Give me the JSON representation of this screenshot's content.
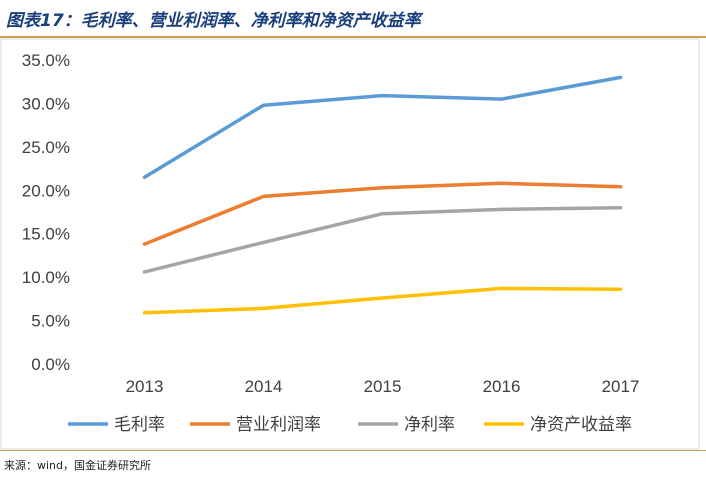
{
  "header": {
    "title": "图表17：毛利率、营业利润率、净利率和净资产收益率"
  },
  "footer": {
    "source": "来源：wind，国金证券研究所"
  },
  "chart_data": {
    "type": "line",
    "title": "",
    "xlabel": "",
    "ylabel": "",
    "categories": [
      "2013",
      "2014",
      "2015",
      "2016",
      "2017"
    ],
    "ylim": [
      0,
      35
    ],
    "yticks": [
      "0.0%",
      "5.0%",
      "10.0%",
      "15.0%",
      "20.0%",
      "25.0%",
      "30.0%",
      "35.0%"
    ],
    "grid": false,
    "legend": "bottom",
    "series": [
      {
        "name": "毛利率",
        "color": "#5b9bd5",
        "values": [
          21.5,
          29.8,
          30.9,
          30.5,
          33.0
        ]
      },
      {
        "name": "营业利润率",
        "color": "#ed7d31",
        "values": [
          13.8,
          19.3,
          20.3,
          20.8,
          20.4
        ]
      },
      {
        "name": "净利率",
        "color": "#a5a5a5",
        "values": [
          10.6,
          14.0,
          17.3,
          17.8,
          18.0
        ]
      },
      {
        "name": "净资产收益率",
        "color": "#ffc000",
        "values": [
          5.9,
          6.4,
          7.6,
          8.7,
          8.6
        ]
      }
    ]
  }
}
